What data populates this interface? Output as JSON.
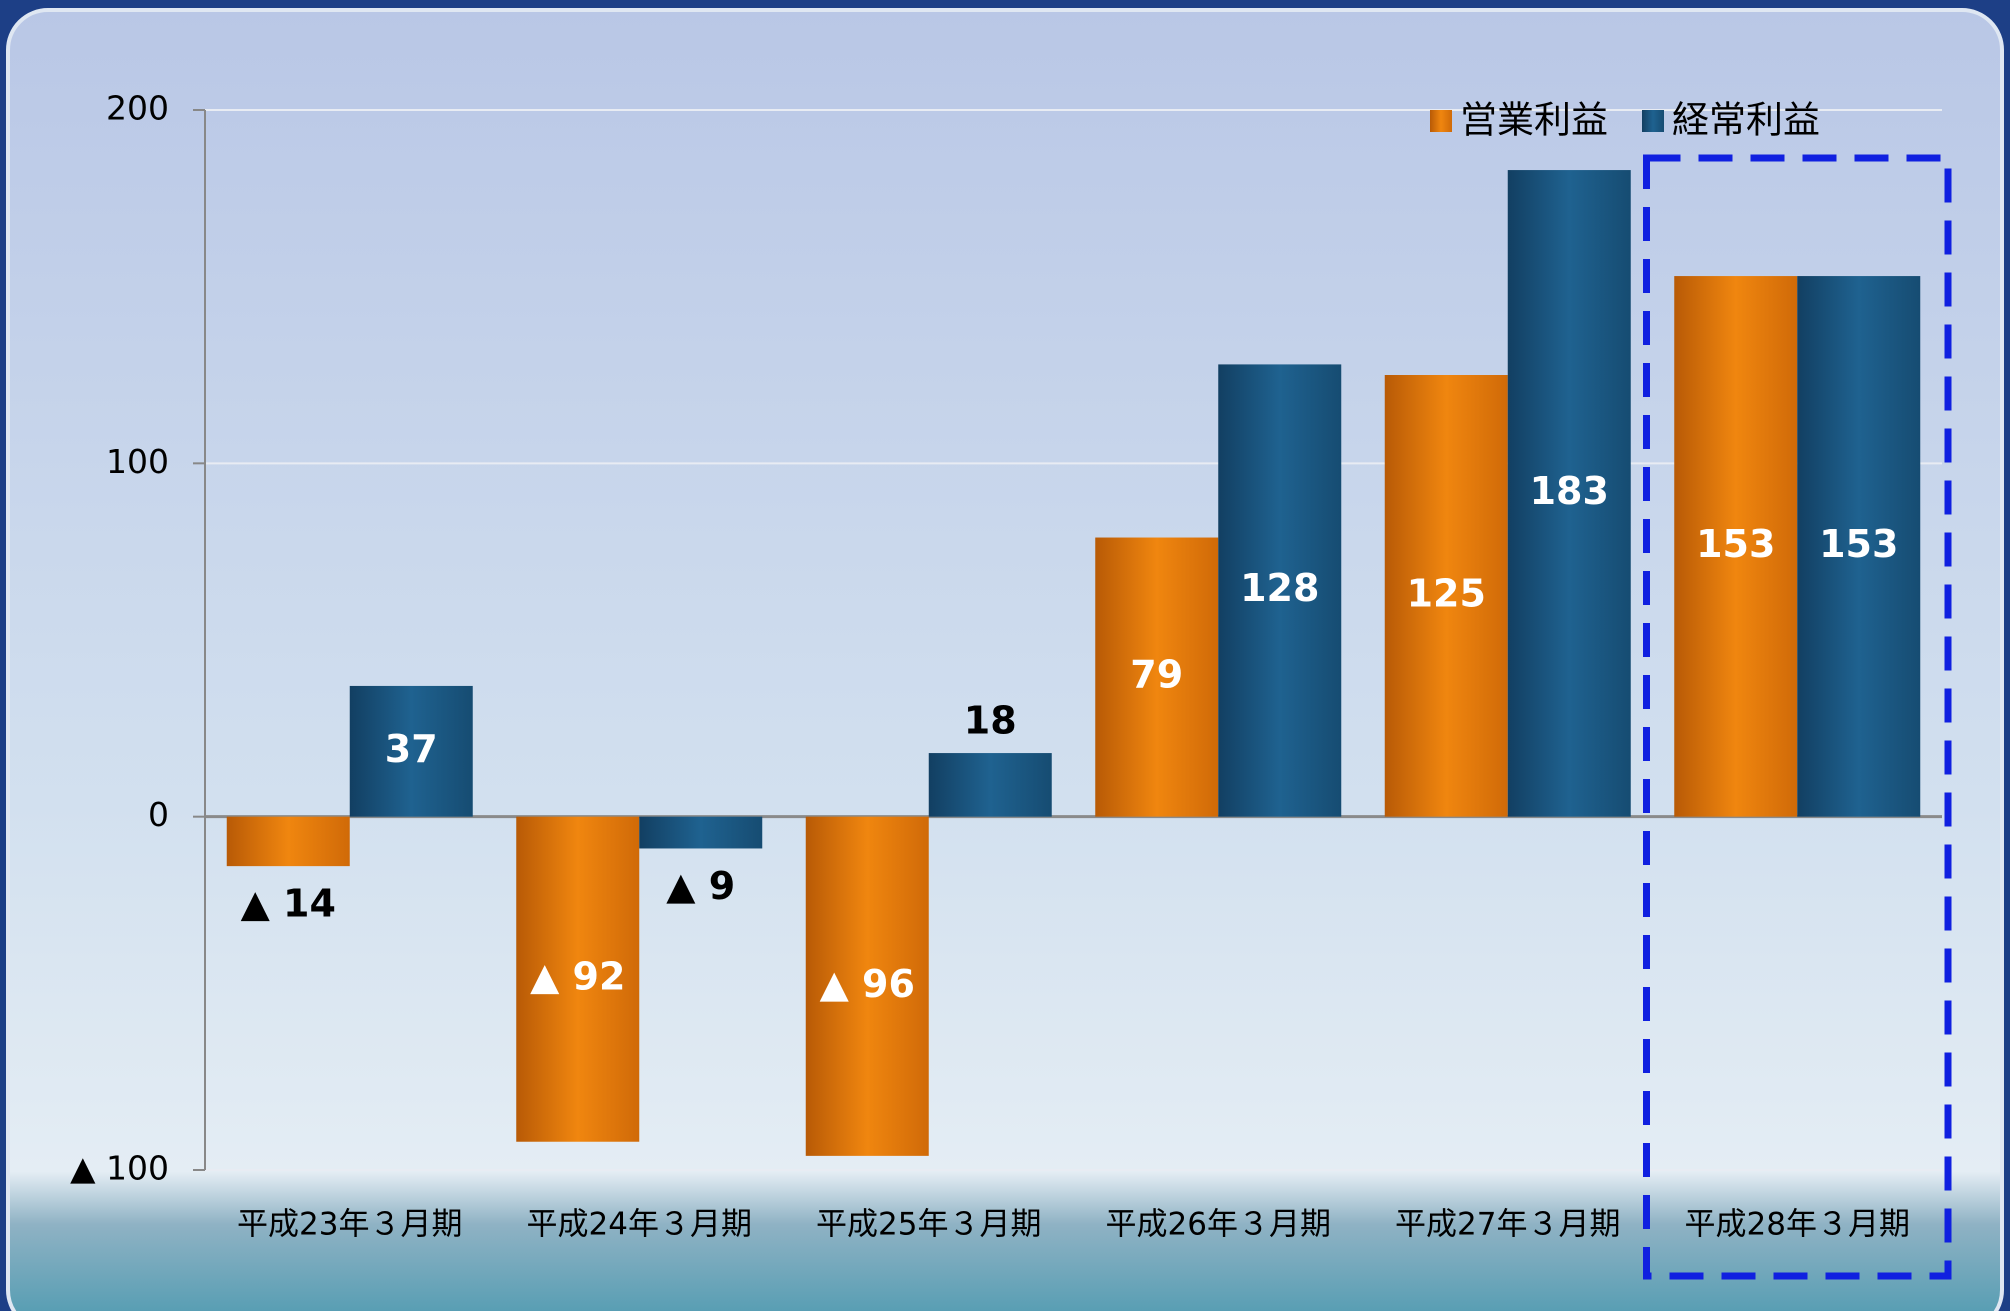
{
  "chart_data": {
    "type": "bar",
    "categories": [
      "平成23年３月期",
      "平成24年３月期",
      "平成25年３月期",
      "平成26年３月期",
      "平成27年３月期",
      "平成28年３月期"
    ],
    "series": [
      {
        "name": "営業利益",
        "color": "#e8790f",
        "values": [
          -14,
          -92,
          -96,
          79,
          125,
          153
        ],
        "value_labels": [
          "▲ 14",
          "▲ 92",
          "▲ 96",
          "79",
          "125",
          "153"
        ]
      },
      {
        "name": "経常利益",
        "color": "#1b5a84",
        "values": [
          37,
          -9,
          18,
          128,
          183,
          153
        ],
        "value_labels": [
          "37",
          "▲ 9",
          "18",
          "128",
          "183",
          "153"
        ]
      }
    ],
    "ylim": [
      -100,
      200
    ],
    "yticks": [
      {
        "value": -100,
        "label": "▲ 100"
      },
      0,
      100,
      200
    ],
    "grid": true,
    "legend": "top-right"
  }
}
